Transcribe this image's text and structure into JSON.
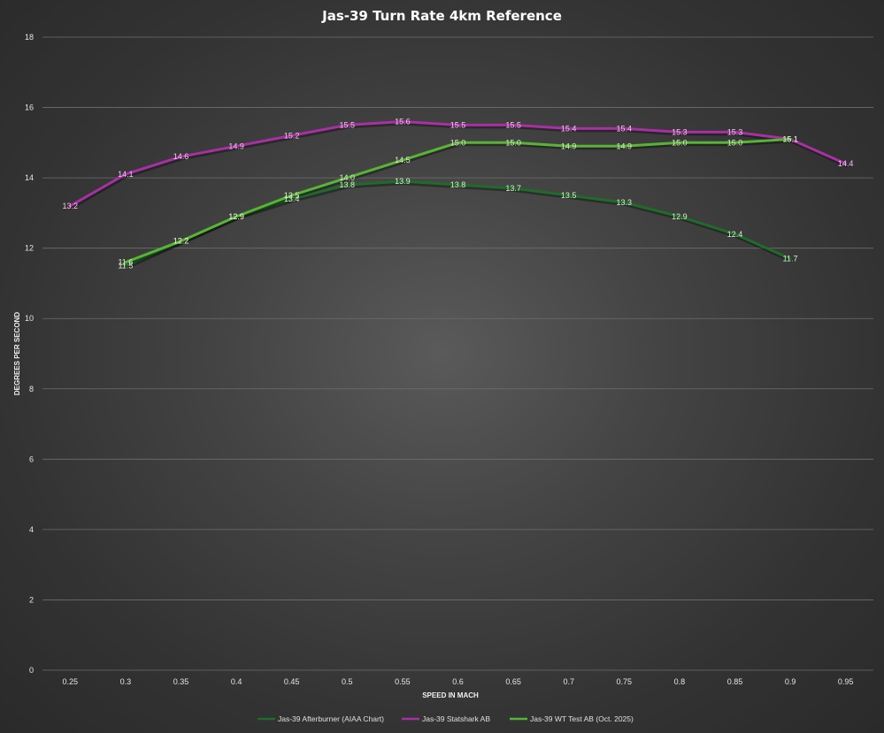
{
  "chart_data": {
    "type": "line",
    "title": "Jas-39 Turn Rate 4km Reference",
    "xlabel": "SPEED IN MACH",
    "ylabel": "DEGREES PER SECOND",
    "ylim": [
      0,
      18
    ],
    "yticks": [
      "0",
      "2",
      "4",
      "6",
      "8",
      "10",
      "12",
      "14",
      "16",
      "18"
    ],
    "categories": [
      "0.25",
      "0.3",
      "0.35",
      "0.4",
      "0.45",
      "0.5",
      "0.55",
      "0.6",
      "0.65",
      "0.7",
      "0.75",
      "0.8",
      "0.85",
      "0.9",
      "0.95"
    ],
    "grid": true,
    "legend_position": "bottom",
    "series": [
      {
        "name": "Jas-39 Afterburner (AIAA Chart)",
        "color": "#1f6b2a",
        "label_color": "#d8f0c8",
        "values": [
          null,
          11.5,
          12.2,
          12.9,
          13.4,
          13.8,
          13.9,
          13.8,
          13.7,
          13.5,
          13.3,
          12.9,
          12.4,
          11.7,
          null
        ],
        "labels": [
          null,
          "11.5",
          "12.2",
          "12.9",
          "13.4",
          "13.8",
          "13.9",
          "13.8",
          "13.7",
          "13.5",
          "13.3",
          "12.9",
          "12.4",
          "11.7",
          null
        ]
      },
      {
        "name": "Jas-39 Statshark AB",
        "color": "#a82fa4",
        "label_color": "#f2c6ee",
        "values": [
          13.2,
          14.1,
          14.6,
          14.9,
          15.2,
          15.5,
          15.6,
          15.5,
          15.5,
          15.4,
          15.4,
          15.3,
          15.3,
          15.1,
          14.4
        ],
        "labels": [
          "13.2",
          "14.1",
          "14.6",
          "14.9",
          "15.2",
          "15.5",
          "15.6",
          "15.5",
          "15.5",
          "15.4",
          "15.4",
          "15.3",
          "15.3",
          "15.1",
          "14.4"
        ]
      },
      {
        "name": "Jas-39 WT Test AB (Oct. 2025)",
        "color": "#58b435",
        "label_color": "#d8f0c8",
        "values": [
          null,
          11.6,
          12.2,
          12.9,
          13.5,
          14.0,
          14.5,
          15.0,
          15.0,
          14.9,
          14.9,
          15.0,
          15.0,
          15.1,
          null
        ],
        "labels": [
          null,
          "11.6",
          "12.2",
          "12.9",
          "13.5",
          "14.0",
          "14.5",
          "15.0",
          "15.0",
          "14.9",
          "14.9",
          "15.0",
          "15.0",
          "15.1",
          null
        ]
      }
    ]
  }
}
